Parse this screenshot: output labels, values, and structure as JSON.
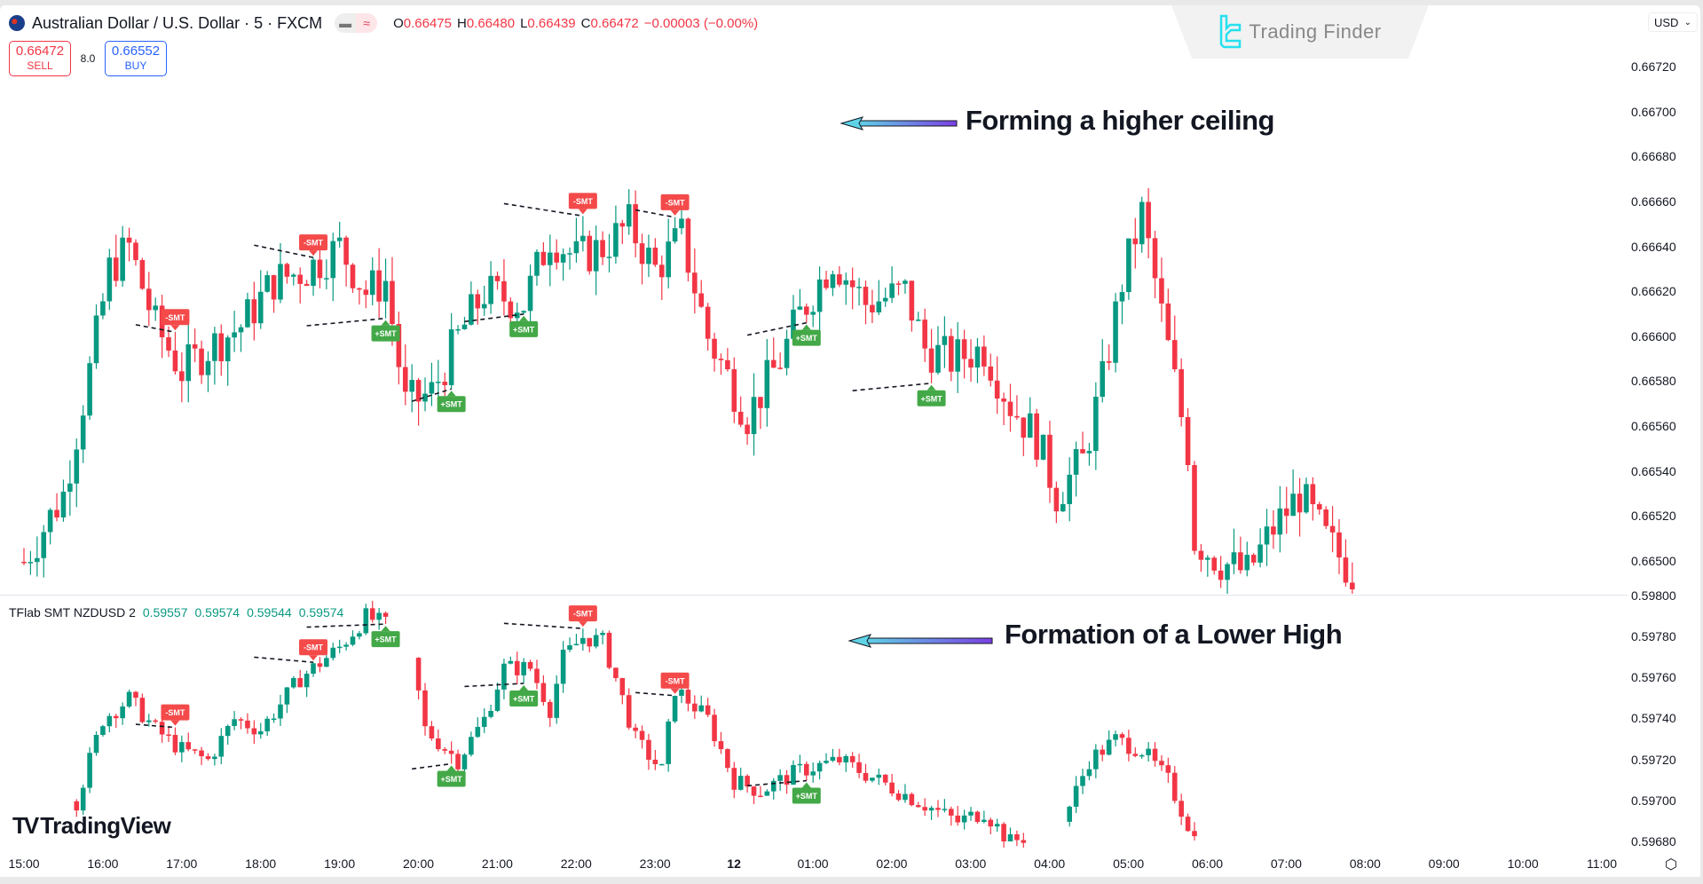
{
  "header": {
    "symbol": "Australian Dollar / U.S. Dollar · 5 · FXCM",
    "ohlc": {
      "o_label": "O",
      "o": "0.66475",
      "h_label": "H",
      "h": "0.66480",
      "l_label": "L",
      "l": "0.66439",
      "c_label": "C",
      "c": "0.66472",
      "change": "−0.00003 (−0.00%)"
    },
    "sell": {
      "price": "0.66472",
      "label": "SELL"
    },
    "buy": {
      "price": "0.66552",
      "label": "BUY"
    },
    "spread": "8.0",
    "currency": "USD"
  },
  "brand": {
    "name": "Trading Finder",
    "color": "#25e0ee"
  },
  "indicator": {
    "name": "TFlab SMT NZDUSD 2",
    "values": [
      "0.59557",
      "0.59574",
      "0.59544",
      "0.59574"
    ]
  },
  "annotations": {
    "top": "Forming a higher ceiling",
    "bottom": "Formation of a Lower High"
  },
  "watermark": "TradingView",
  "colors": {
    "up": "#089981",
    "down": "#f23645",
    "smt_bear": "#f44a4a",
    "smt_bull": "#43a847",
    "arrow_start": "#5fd3e6",
    "arrow_end": "#7b3fe4"
  },
  "chart_data": [
    {
      "type": "candlestick",
      "title": "Australian Dollar / U.S. Dollar · 5 · FXCM",
      "ylabel": "USD",
      "y_ticks": [
        "0.66720",
        "0.66700",
        "0.66680",
        "0.66660",
        "0.66640",
        "0.66620",
        "0.66600",
        "0.66580",
        "0.66560",
        "0.66540",
        "0.66520",
        "0.66500"
      ],
      "ylim": [
        0.6649,
        0.66735
      ],
      "x_ticks": [
        "15:00",
        "16:00",
        "17:00",
        "18:00",
        "19:00",
        "20:00",
        "21:00",
        "22:00",
        "23:00",
        "12",
        "01:00",
        "02:00",
        "03:00",
        "04:00",
        "05:00",
        "06:00",
        "07:00",
        "08:00",
        "09:00",
        "10:00",
        "11:00"
      ],
      "path_keypoints": [
        [
          0,
          0.665
        ],
        [
          6,
          0.6653
        ],
        [
          10,
          0.66585
        ],
        [
          13,
          0.6663
        ],
        [
          16,
          0.6664
        ],
        [
          20,
          0.66605
        ],
        [
          24,
          0.66585
        ],
        [
          28,
          0.66595
        ],
        [
          33,
          0.66605
        ],
        [
          38,
          0.66625
        ],
        [
          43,
          0.6663
        ],
        [
          48,
          0.6664
        ],
        [
          52,
          0.6662
        ],
        [
          55,
          0.66625
        ],
        [
          58,
          0.6657
        ],
        [
          62,
          0.66575
        ],
        [
          66,
          0.666
        ],
        [
          70,
          0.6662
        ],
        [
          76,
          0.66615
        ],
        [
          80,
          0.66645
        ],
        [
          84,
          0.66635
        ],
        [
          88,
          0.6664
        ],
        [
          92,
          0.6665
        ],
        [
          96,
          0.6663
        ],
        [
          100,
          0.66645
        ],
        [
          104,
          0.666
        ],
        [
          110,
          0.66565
        ],
        [
          115,
          0.6659
        ],
        [
          118,
          0.6661
        ],
        [
          123,
          0.66635
        ],
        [
          128,
          0.66615
        ],
        [
          134,
          0.6662
        ],
        [
          137,
          0.66595
        ],
        [
          141,
          0.6659
        ],
        [
          146,
          0.66595
        ],
        [
          150,
          0.6657
        ],
        [
          154,
          0.66555
        ],
        [
          157,
          0.6653
        ],
        [
          161,
          0.66545
        ],
        [
          164,
          0.6658
        ],
        [
          167,
          0.66625
        ],
        [
          170,
          0.66655
        ],
        [
          173,
          0.6661
        ],
        [
          177,
          0.6655
        ],
        [
          178,
          0.6651
        ],
        [
          182,
          0.665
        ],
        [
          186,
          0.66495
        ],
        [
          190,
          0.66515
        ],
        [
          194,
          0.6653
        ],
        [
          198,
          0.6651
        ],
        [
          202,
          0.66495
        ]
      ],
      "smt_labels": [
        {
          "i": 23,
          "label": "-SMT",
          "type": "bear"
        },
        {
          "i": 44,
          "label": "-SMT",
          "type": "bear"
        },
        {
          "i": 55,
          "label": "+SMT",
          "type": "bull"
        },
        {
          "i": 65,
          "label": "+SMT",
          "type": "bull"
        },
        {
          "i": 76,
          "label": "+SMT",
          "type": "bull"
        },
        {
          "i": 85,
          "label": "-SMT",
          "type": "bear"
        },
        {
          "i": 99,
          "label": "-SMT",
          "type": "bear"
        },
        {
          "i": 119,
          "label": "+SMT",
          "type": "bull"
        },
        {
          "i": 138,
          "label": "+SMT",
          "type": "bull"
        }
      ]
    },
    {
      "type": "candlestick",
      "title": "TFlab SMT NZDUSD 2",
      "y_ticks": [
        "0.59800",
        "0.59780",
        "0.59760",
        "0.59740",
        "0.59720",
        "0.59700",
        "0.59680"
      ],
      "ylim": [
        0.59675,
        0.59805
      ],
      "path_keypoints": [
        [
          8,
          0.597
        ],
        [
          12,
          0.5974
        ],
        [
          16,
          0.5975
        ],
        [
          20,
          0.59735
        ],
        [
          24,
          0.59725
        ],
        [
          28,
          0.5972
        ],
        [
          32,
          0.5974
        ],
        [
          36,
          0.59735
        ],
        [
          42,
          0.5976
        ],
        [
          48,
          0.59775
        ],
        [
          52,
          0.5979
        ],
        [
          56,
          0.59785
        ],
        [
          59,
          0.5977
        ],
        [
          61,
          0.59735
        ],
        [
          66,
          0.5972
        ],
        [
          70,
          0.5974
        ],
        [
          73,
          0.59765
        ],
        [
          77,
          0.59765
        ],
        [
          80,
          0.59745
        ],
        [
          82,
          0.5977
        ],
        [
          85,
          0.5978
        ],
        [
          88,
          0.59778
        ],
        [
          90,
          0.5976
        ],
        [
          93,
          0.5973
        ],
        [
          97,
          0.59715
        ],
        [
          99,
          0.59755
        ],
        [
          104,
          0.5974
        ],
        [
          108,
          0.5971
        ],
        [
          112,
          0.59705
        ],
        [
          118,
          0.59715
        ],
        [
          124,
          0.5972
        ],
        [
          130,
          0.5971
        ],
        [
          136,
          0.597
        ],
        [
          142,
          0.5969
        ],
        [
          146,
          0.59695
        ],
        [
          150,
          0.5968
        ],
        [
          154,
          0.59685
        ],
        [
          158,
          0.5969
        ],
        [
          162,
          0.5972
        ],
        [
          166,
          0.5973
        ],
        [
          170,
          0.59725
        ],
        [
          174,
          0.5971
        ],
        [
          178,
          0.59682
        ]
      ],
      "smt_labels": [
        {
          "i": 23,
          "label": "-SMT",
          "type": "bear"
        },
        {
          "i": 44,
          "label": "-SMT",
          "type": "bear"
        },
        {
          "i": 55,
          "label": "+SMT",
          "type": "bull"
        },
        {
          "i": 65,
          "label": "+SMT",
          "type": "bull"
        },
        {
          "i": 76,
          "label": "+SMT",
          "type": "bull"
        },
        {
          "i": 85,
          "label": "-SMT",
          "type": "bear"
        },
        {
          "i": 99,
          "label": "-SMT",
          "type": "bear"
        },
        {
          "i": 119,
          "label": "+SMT",
          "type": "bull"
        }
      ]
    }
  ]
}
